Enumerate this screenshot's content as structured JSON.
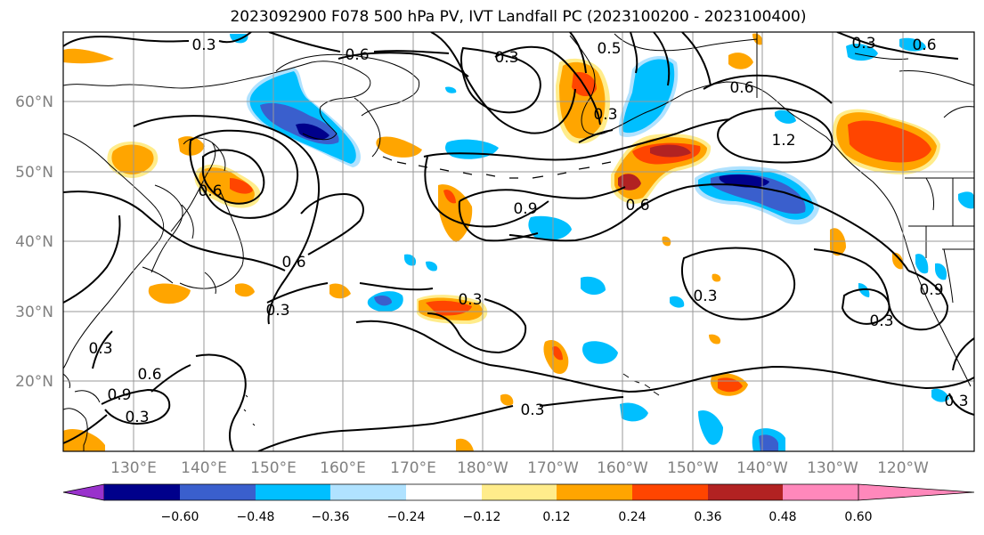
{
  "title": "2023092900 F078 500 hPa PV, IVT Landfall PC (2023100200 - 2023100400)",
  "latitude_labels": [
    "60°N",
    "50°N",
    "40°N",
    "30°N",
    "20°N"
  ],
  "longitude_labels": [
    "130°E",
    "140°E",
    "150°E",
    "160°E",
    "170°E",
    "180°W",
    "170°W",
    "160°W",
    "150°W",
    "140°W",
    "130°W",
    "120°W"
  ],
  "colorbar": {
    "tick_labels": [
      "−0.60",
      "−0.48",
      "−0.36",
      "−0.24",
      "−0.12",
      "0.12",
      "0.24",
      "0.36",
      "0.48",
      "0.60"
    ],
    "colors": [
      "#9932CC",
      "#00008B",
      "#3A5FCD",
      "#00BFFF",
      "#B0E2FF",
      "#FFFFFF",
      "#FFEC8B",
      "#FFA500",
      "#FF4500",
      "#B22222",
      "#FF88BB"
    ]
  },
  "contour_labels": [
    "0.3",
    "0.6",
    "0.3",
    "0.5",
    "0.3",
    "0.6",
    "0.6",
    "1.2",
    "0.9",
    "0.6",
    "0.6",
    "0.3",
    "0.3",
    "0.3",
    "0.3",
    "0.3",
    "0.9",
    "0.6",
    "0.3",
    "0.3",
    "0.9",
    "0.6",
    "0.3",
    "0.3"
  ]
}
